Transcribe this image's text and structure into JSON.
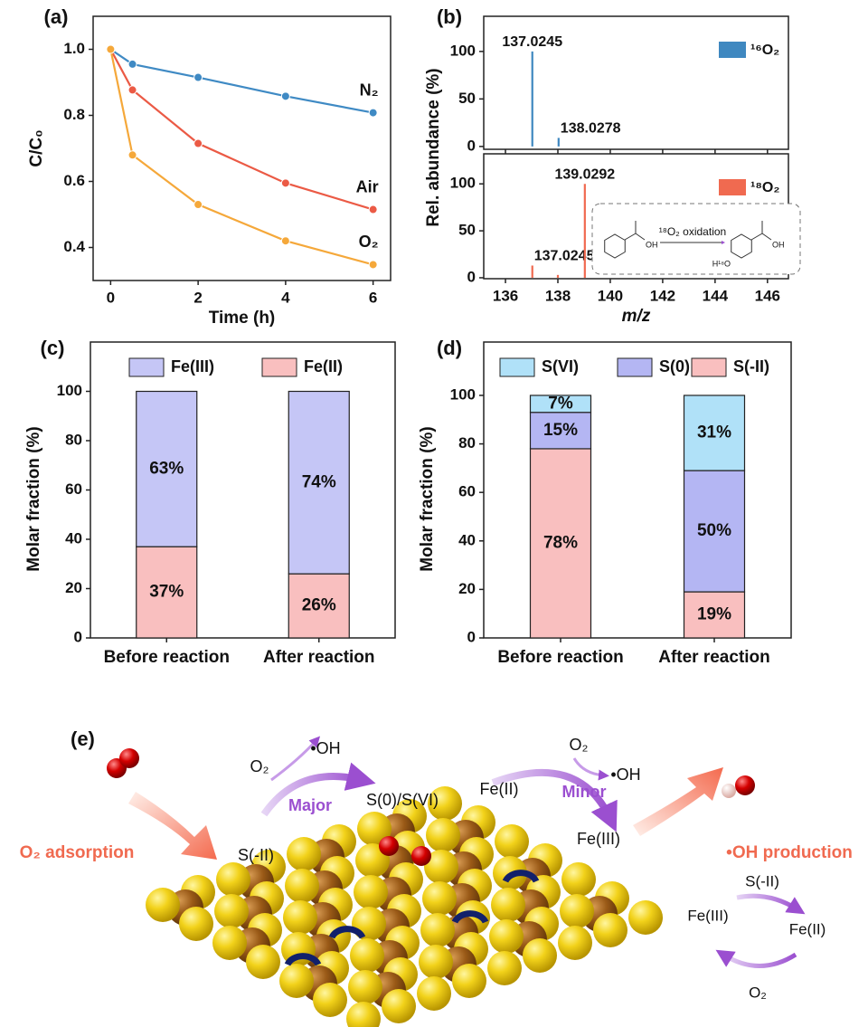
{
  "chart_data": [
    {
      "type": "line",
      "label": "(a)",
      "xlabel": "Time (h)",
      "ylabel": "C/C₀",
      "x": [
        0,
        0.5,
        2,
        4,
        6
      ],
      "xlim": [
        -0.4,
        6.4
      ],
      "xticks": [
        0,
        2,
        4,
        6
      ],
      "ylim": [
        0.3,
        1.1
      ],
      "yticks": [
        0.4,
        0.6,
        0.8,
        {
          "value": 1,
          "label": "1.0"
        }
      ],
      "series": [
        {
          "name": "N₂",
          "color": "#3f8ac4",
          "values": [
            1.0,
            0.955,
            0.915,
            0.858,
            0.808
          ]
        },
        {
          "name": "Air",
          "color": "#eb5a45",
          "values": [
            1.0,
            0.877,
            0.715,
            0.595,
            0.515
          ]
        },
        {
          "name": "O₂",
          "color": "#f5a83a",
          "values": [
            1.0,
            0.68,
            0.53,
            0.42,
            0.348
          ]
        }
      ]
    },
    {
      "type": "stick",
      "label": "(b)",
      "xlabel": "m/z",
      "ylabel": "Rel. abundance (%)",
      "xlim": [
        135.17,
        146.8
      ],
      "xticks": [
        136,
        138,
        140,
        142,
        144,
        146
      ],
      "series": [
        {
          "name": "¹⁶O₂",
          "color": "#3f88c0",
          "x": [
            137.0245,
            138.0278
          ],
          "values": [
            100,
            9
          ],
          "x_labels": [
            "137.0245",
            "138.0278"
          ],
          "ylim": [
            -3,
            137
          ],
          "yticks": [
            0,
            50,
            100
          ]
        },
        {
          "name": "¹⁸O₂",
          "color": "#f06a50",
          "x": [
            137.0245,
            138,
            139.0292
          ],
          "values": [
            13,
            3,
            100
          ],
          "x_labels": [
            "137.0245",
            null,
            "139.0292"
          ],
          "ylim": [
            -1,
            132
          ],
          "yticks": [
            0,
            50,
            100
          ]
        }
      ],
      "inset": {
        "title": "¹⁸O₂ oxidation",
        "left_group": "OH",
        "right_group": "OH",
        "substituent": "H¹⁸O"
      }
    },
    {
      "type": "stacked_bar",
      "label": "(c)",
      "ylabel": "Molar fraction (%)",
      "categories": [
        "Before reaction",
        "After reaction"
      ],
      "ylim": [
        0,
        120
      ],
      "yticks": [
        0,
        20,
        40,
        60,
        80,
        100
      ],
      "series": [
        {
          "name": "Fe(III)",
          "color": "#c5c6f6",
          "values": [
            63,
            74
          ],
          "value_labels": [
            "63%",
            "74%"
          ]
        },
        {
          "name": "Fe(II)",
          "color": "#f9bfbf",
          "values": [
            37,
            26
          ],
          "value_labels": [
            "37%",
            "26%"
          ]
        }
      ]
    },
    {
      "type": "stacked_bar",
      "label": "(d)",
      "ylabel": "Molar fraction (%)",
      "categories": [
        "Before reaction",
        "After reaction"
      ],
      "ylim": [
        0,
        122
      ],
      "yticks": [
        0,
        20,
        40,
        60,
        80,
        100
      ],
      "series": [
        {
          "name": "S(VI)",
          "color": "#b0e1f8",
          "values": [
            7,
            31
          ],
          "value_labels": [
            "7%",
            "31%"
          ]
        },
        {
          "name": "S(0)",
          "color": "#b4b6f3",
          "values": [
            15,
            50
          ],
          "value_labels": [
            "15%",
            "50%"
          ]
        },
        {
          "name": "S(-II)",
          "color": "#f9bfbf",
          "values": [
            78,
            19
          ],
          "value_labels": [
            "78%",
            "19%"
          ]
        }
      ]
    }
  ],
  "diagram": {
    "label": "(e)",
    "adsorption": "O₂ adsorption",
    "production": "•OH production",
    "major": {
      "o2": "O₂",
      "oh": "•OH",
      "label": "Major",
      "from": "S(-II)",
      "to": "S(0)/S(VI)"
    },
    "minor": {
      "o2": "O₂",
      "oh": "•OH",
      "label": "Minor",
      "from": "Fe(II)",
      "to": "Fe(III)"
    },
    "cycle": {
      "top": "S(-II)",
      "left": "Fe(III)",
      "right": "Fe(II)",
      "bottom": "O₂"
    }
  }
}
